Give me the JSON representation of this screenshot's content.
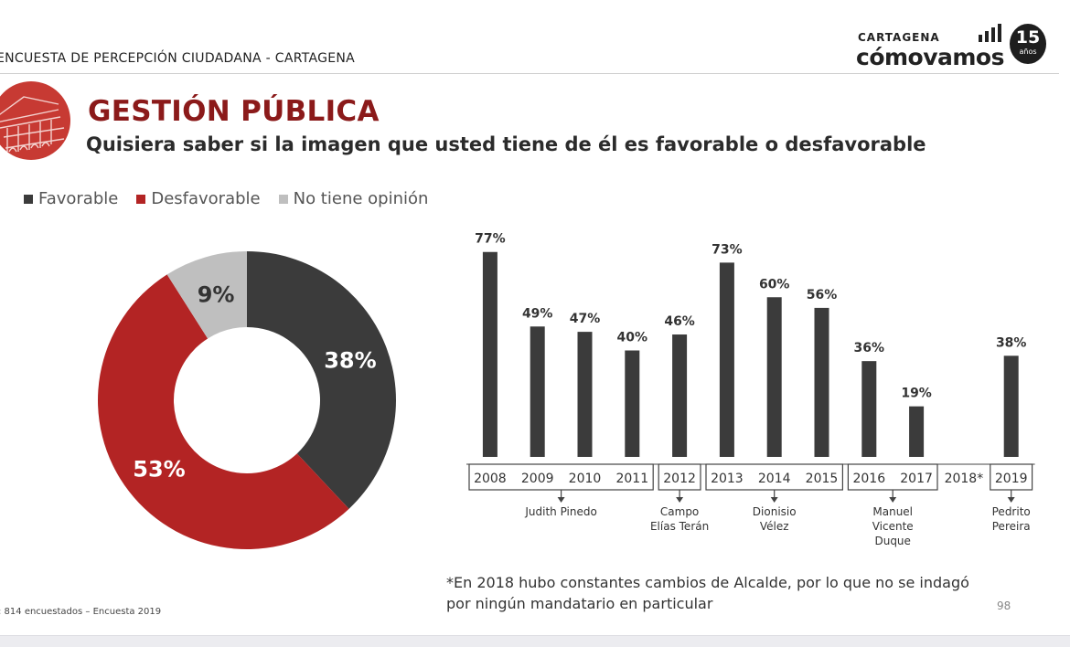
{
  "header": {
    "survey_title": "ENCUESTA DE PERCEPCIÓN CIUDADANA - CARTAGENA",
    "logo_city": "CARTAGENA",
    "logo_name": "cómovamos",
    "logo_badge_number": "15",
    "logo_badge_text": "años"
  },
  "section": {
    "title": "GESTIÓN PÚBLICA",
    "question": "Quisiera saber si la imagen que usted tiene de él es favorable o desfavorable"
  },
  "legend": [
    {
      "label": "Favorable",
      "color": "#3b3b3b"
    },
    {
      "label": "Desfavorable",
      "color": "#b32424"
    },
    {
      "label": "No tiene opinión",
      "color": "#bfbfbf"
    }
  ],
  "chart_data": [
    {
      "type": "pie",
      "slices": [
        {
          "name": "Favorable",
          "value": 38,
          "label": "38%",
          "color": "#3b3b3b"
        },
        {
          "name": "Desfavorable",
          "value": 53,
          "label": "53%",
          "color": "#b32424"
        },
        {
          "name": "No tiene opinión",
          "value": 9,
          "label": "9%",
          "color": "#bfbfbf"
        }
      ]
    },
    {
      "type": "bar",
      "categories": [
        "2008",
        "2009",
        "2010",
        "2011",
        "2012",
        "2013",
        "2014",
        "2015",
        "2016",
        "2017",
        "2018*",
        "2019"
      ],
      "values": [
        77,
        49,
        47,
        40,
        46,
        73,
        60,
        56,
        36,
        19,
        null,
        38
      ],
      "labels": [
        "77%",
        "49%",
        "47%",
        "40%",
        "46%",
        "73%",
        "60%",
        "56%",
        "36%",
        "19%",
        "",
        "38%"
      ],
      "ylim": [
        0,
        80
      ],
      "bar_color": "#3b3b3b",
      "groups": [
        {
          "years": [
            "2008",
            "2009",
            "2010",
            "2011"
          ],
          "name": [
            "Judith Pinedo"
          ]
        },
        {
          "years": [
            "2012"
          ],
          "name": [
            "Campo",
            "Elías Terán"
          ]
        },
        {
          "years": [
            "2013",
            "2014",
            "2015"
          ],
          "name": [
            "Dionisio",
            "Vélez"
          ]
        },
        {
          "years": [
            "2016",
            "2017"
          ],
          "name": [
            "Manuel",
            "Vicente",
            "Duque"
          ]
        },
        {
          "years": [
            "2019"
          ],
          "name": [
            "Pedrito",
            "Pereira"
          ]
        }
      ]
    }
  ],
  "footnote": {
    "line1": "*En 2018 hubo constantes cambios de Alcalde, por lo que no se indagó",
    "line2": "por ningún mandatario en particular"
  },
  "source": ": 814 encuestados – Encuesta 2019",
  "page_number": "98"
}
